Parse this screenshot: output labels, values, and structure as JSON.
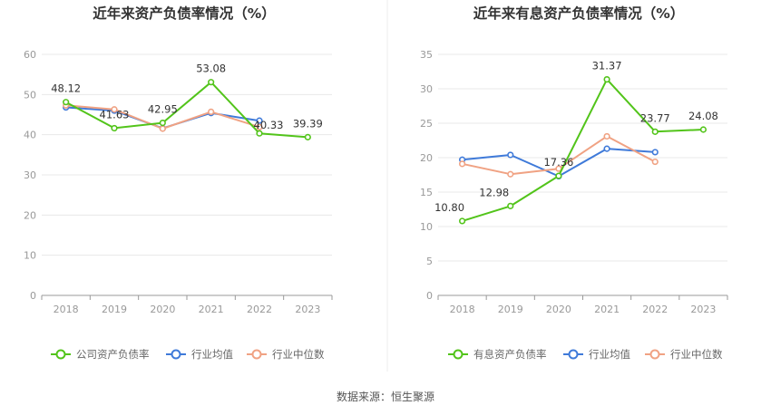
{
  "source_text": "数据来源：恒生聚源",
  "colors": {
    "company": "#52c41a",
    "industry_avg": "#3f7ad9",
    "industry_median": "#f0a283",
    "grid": "#e8e8e8",
    "axis": "#999999"
  },
  "chart_data": [
    {
      "type": "line",
      "title": "近年来资产负债率情况（%）",
      "categories": [
        "2018",
        "2019",
        "2020",
        "2021",
        "2022",
        "2023"
      ],
      "ylim": [
        0,
        60
      ],
      "yticks": [
        0,
        10,
        20,
        30,
        40,
        50,
        60
      ],
      "grid": true,
      "legend_position": "bottom",
      "series": [
        {
          "name": "公司资产负债率",
          "color": "#52c41a",
          "values": [
            48.12,
            41.63,
            42.95,
            53.08,
            40.33,
            39.39
          ],
          "labels": [
            "48.12",
            "41.63",
            "42.95",
            "53.08",
            "40.33",
            "39.39"
          ]
        },
        {
          "name": "行业均值",
          "color": "#3f7ad9",
          "values": [
            46.8,
            46.0,
            41.6,
            45.4,
            43.5,
            null
          ],
          "labels": []
        },
        {
          "name": "行业中位数",
          "color": "#f0a283",
          "values": [
            47.3,
            46.3,
            41.5,
            45.7,
            41.9,
            null
          ],
          "labels": []
        }
      ]
    },
    {
      "type": "line",
      "title": "近年来有息资产负债率情况（%）",
      "categories": [
        "2018",
        "2019",
        "2020",
        "2021",
        "2022",
        "2023"
      ],
      "ylim": [
        0,
        35
      ],
      "yticks": [
        0,
        5,
        10,
        15,
        20,
        25,
        30,
        35
      ],
      "grid": true,
      "legend_position": "bottom",
      "series": [
        {
          "name": "有息资产负债率",
          "color": "#52c41a",
          "values": [
            10.8,
            12.98,
            17.36,
            31.37,
            23.77,
            24.08
          ],
          "labels": [
            "10.80",
            "12.98",
            "17.36",
            "31.37",
            "23.77",
            "24.08"
          ]
        },
        {
          "name": "行业均值",
          "color": "#3f7ad9",
          "values": [
            19.7,
            20.4,
            17.3,
            21.3,
            20.8,
            null
          ],
          "labels": []
        },
        {
          "name": "行业中位数",
          "color": "#f0a283",
          "values": [
            19.1,
            17.6,
            18.4,
            23.1,
            19.4,
            null
          ],
          "labels": []
        }
      ]
    }
  ]
}
